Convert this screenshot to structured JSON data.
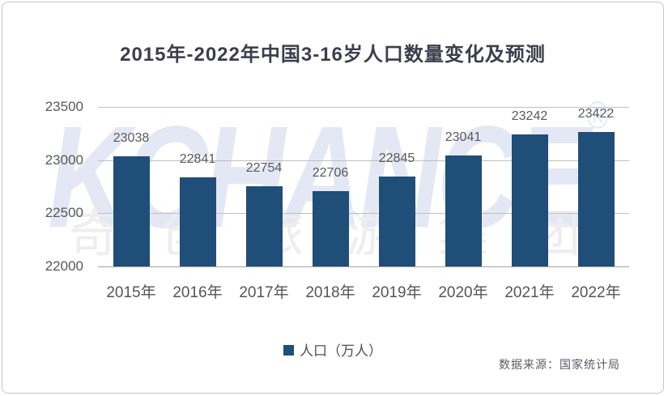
{
  "page": {
    "title": "2015年-2022年中国3-16岁人口数量变化及预测",
    "source_note": "数据来源：国家统计局",
    "watermark": {
      "brand": "KCHANCE",
      "registered_mark": "®",
      "company_cn": "奇创旅游集团"
    }
  },
  "legend": {
    "label": "人口（万人）"
  },
  "colors": {
    "bar": "#1F4E79",
    "gridline": "#BFBFBF",
    "axis_line": "#A3A3A3",
    "tick_text": "#595959",
    "title_text": "#3D3D4C",
    "watermark": "#E4E8F4"
  },
  "chart_data": {
    "type": "bar",
    "title": "2015年-2022年中国3-16岁人口数量变化及预测",
    "categories": [
      "2015年",
      "2016年",
      "2017年",
      "2018年",
      "2019年",
      "2020年",
      "2021年",
      "2022年"
    ],
    "series": [
      {
        "name": "人口（万人）",
        "color": "#1F4E79",
        "values": [
          23038,
          22841,
          22754,
          22706,
          22845,
          23041,
          23242,
          23422
        ]
      }
    ],
    "ylim": [
      22000,
      23500
    ],
    "yticks": [
      22000,
      22500,
      23000,
      23500
    ],
    "grid": true,
    "legend_position": "bottom",
    "data_labels": "outside-end",
    "source": "数据来源：国家统计局"
  }
}
